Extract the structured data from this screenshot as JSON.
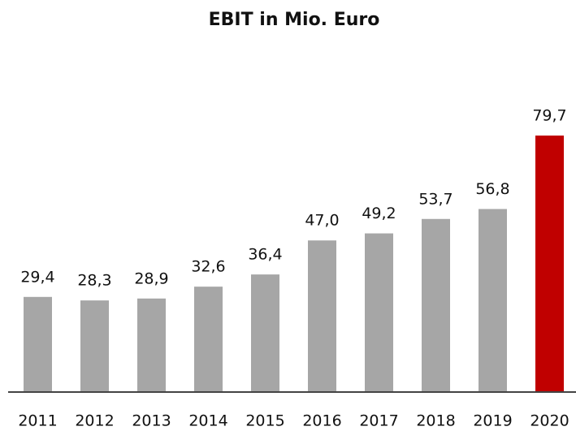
{
  "chart_data": {
    "type": "bar",
    "title": "EBIT in Mio. Euro",
    "categories": [
      "2011",
      "2012",
      "2013",
      "2014",
      "2015",
      "2016",
      "2017",
      "2018",
      "2019",
      "2020"
    ],
    "values": [
      29.4,
      28.3,
      28.9,
      32.6,
      36.4,
      47.0,
      49.2,
      53.7,
      56.8,
      79.7
    ],
    "value_labels": [
      "29,4",
      "28,3",
      "28,9",
      "32,6",
      "36,4",
      "47,0",
      "49,2",
      "53,7",
      "56,8",
      "79,7"
    ],
    "colors": [
      "#a6a6a6",
      "#a6a6a6",
      "#a6a6a6",
      "#a6a6a6",
      "#a6a6a6",
      "#a6a6a6",
      "#a6a6a6",
      "#a6a6a6",
      "#a6a6a6",
      "#c00000"
    ]
  }
}
